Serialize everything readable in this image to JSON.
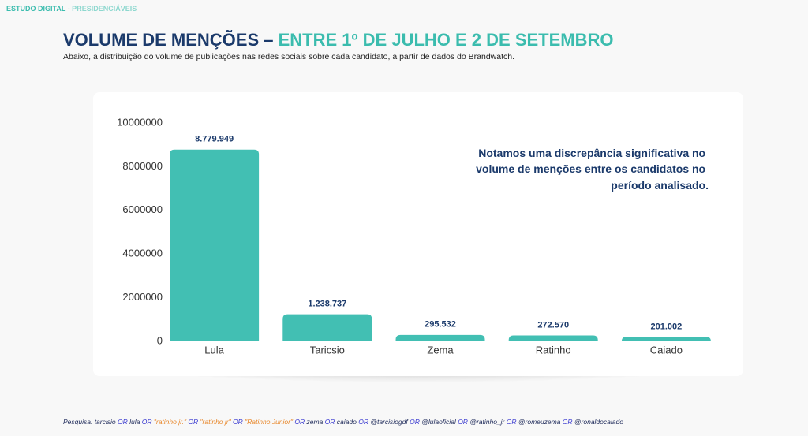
{
  "header": {
    "brand": "ESTUDO DIGITAL",
    "section": "- PRESIDENCIÁVEIS"
  },
  "title": {
    "main": "VOLUME DE MENÇÕES –",
    "highlight": "ENTRE 1º DE JULHO E 2 DE SETEMBRO"
  },
  "subtitle": "Abaixo, a distribuição do volume de publicações nas redes sociais sobre cada candidato, a partir de dados do Brandwatch.",
  "chart_data": {
    "type": "bar",
    "categories": [
      "Lula",
      "Taricsio",
      "Zema",
      "Ratinho",
      "Caiado"
    ],
    "values": [
      8779949,
      1238737,
      295532,
      272570,
      201002
    ],
    "value_labels": [
      "8.779.949",
      "1.238.737",
      "295.532",
      "272.570",
      "201.002"
    ],
    "color": "#42bfb3",
    "ylim": [
      0,
      10000000
    ],
    "yticks": [
      0,
      2000000,
      4000000,
      6000000,
      8000000,
      10000000
    ],
    "grid": false,
    "annotation": [
      "Notamos uma discrepância significativa no",
      "volume de menções entre os candidatos no",
      "período analisado."
    ]
  },
  "footer": [
    {
      "text": "Pesquisa: tarcisio",
      "color": "#1e2a5a"
    },
    {
      "text": "OR",
      "color": "#3a3ad0"
    },
    {
      "text": "lula",
      "color": "#1e2a5a"
    },
    {
      "text": "OR",
      "color": "#3a3ad0"
    },
    {
      "text": "\"ratinho jr.\"",
      "color": "#e8882c"
    },
    {
      "text": "OR",
      "color": "#3a3ad0"
    },
    {
      "text": "\"ratinho jr\"",
      "color": "#e8882c"
    },
    {
      "text": "OR",
      "color": "#3a3ad0"
    },
    {
      "text": "\"Ratinho Junior\"",
      "color": "#e8882c"
    },
    {
      "text": "OR",
      "color": "#3a3ad0"
    },
    {
      "text": "zema",
      "color": "#1e2a5a"
    },
    {
      "text": "OR",
      "color": "#3a3ad0"
    },
    {
      "text": "caiado",
      "color": "#1e2a5a"
    },
    {
      "text": "OR",
      "color": "#3a3ad0"
    },
    {
      "text": "@tarcisiogdf",
      "color": "#1e2a5a"
    },
    {
      "text": "OR",
      "color": "#3a3ad0"
    },
    {
      "text": "@lulaoficial",
      "color": "#1e2a5a"
    },
    {
      "text": "OR",
      "color": "#3a3ad0"
    },
    {
      "text": "@ratinho_jr",
      "color": "#1e2a5a"
    },
    {
      "text": "OR",
      "color": "#3a3ad0"
    },
    {
      "text": "@romeuzema",
      "color": "#1e2a5a"
    },
    {
      "text": "OR",
      "color": "#3a3ad0"
    },
    {
      "text": "@ronaldocaiado",
      "color": "#1e2a5a"
    }
  ]
}
